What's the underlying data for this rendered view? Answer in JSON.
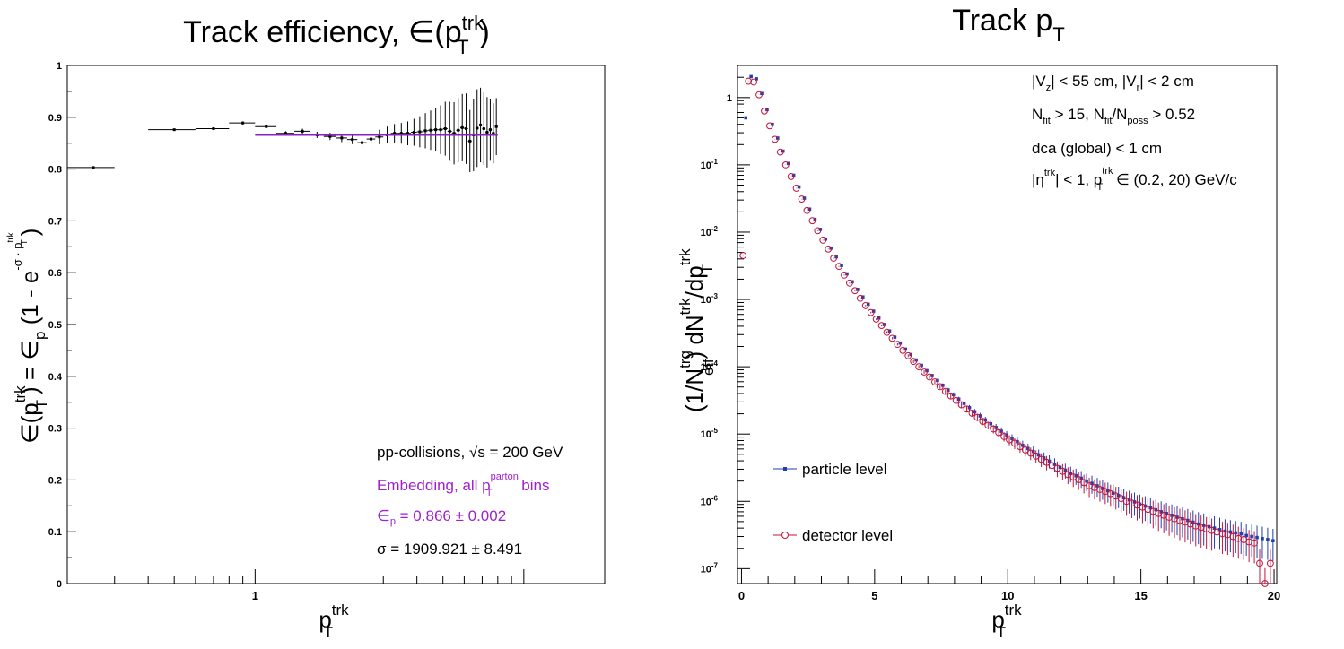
{
  "chart_data": [
    {
      "type": "scatter",
      "title": "Track efficiency, ∈(p",
      "title_sup": "trk",
      "title_sub": "T",
      "title_close": ")",
      "xlabel": "p",
      "xlabel_sup": "trk",
      "xlabel_sub": "T",
      "ylabel": "∈(p",
      "ylabel_sup": "trk",
      "ylabel_sub": "T",
      "ylabel_mid": ") = ∈",
      "ylabel_mid_sub": "p",
      "ylabel_tail": " (1 - e",
      "ylabel_exp": "-σ · p",
      "ylabel_exp_sup": "trk",
      "ylabel_exp_sub": "T",
      "ylabel_close": ")",
      "x_scale": "log",
      "xlim": [
        0.2,
        20
      ],
      "ylim": [
        0,
        1
      ],
      "x_tick_label": "1",
      "y_ticks": [
        "0",
        "0.1",
        "0.2",
        "0.3",
        "0.4",
        "0.5",
        "0.6",
        "0.7",
        "0.8",
        "0.9",
        "1"
      ],
      "series": [
        {
          "type": "errorbar",
          "color": "#000000",
          "x": [
            0.25,
            0.5,
            0.7,
            0.9,
            1.1,
            1.3,
            1.5,
            1.7,
            1.9,
            2.1,
            2.3,
            2.5,
            2.7,
            2.9,
            3.1,
            3.3,
            3.5,
            3.7,
            3.9,
            4.1,
            4.3,
            4.5,
            4.7,
            4.9,
            5.1,
            5.3,
            5.5,
            5.7,
            5.9,
            6.1,
            6.3,
            6.5,
            6.7,
            6.9,
            7.1,
            7.3,
            7.5,
            7.7,
            7.9
          ],
          "xerr": [
            0.05,
            0.1,
            0.1,
            0.1,
            0.1,
            0.1,
            0.1,
            0.1,
            0.1,
            0.1,
            0.1,
            0.1,
            0.1,
            0.1,
            0.1,
            0.1,
            0.1,
            0.1,
            0.1,
            0.1,
            0.1,
            0.1,
            0.1,
            0.1,
            0.1,
            0.1,
            0.1,
            0.1,
            0.1,
            0.1,
            0.1,
            0.1,
            0.1,
            0.1,
            0.1,
            0.1,
            0.1,
            0.1,
            0.1
          ],
          "y": [
            0.803,
            0.876,
            0.878,
            0.889,
            0.882,
            0.869,
            0.873,
            0.866,
            0.863,
            0.86,
            0.857,
            0.851,
            0.858,
            0.862,
            0.866,
            0.869,
            0.869,
            0.869,
            0.871,
            0.872,
            0.874,
            0.875,
            0.876,
            0.876,
            0.878,
            0.873,
            0.869,
            0.875,
            0.88,
            0.878,
            0.854,
            0.866,
            0.879,
            0.885,
            0.878,
            0.871,
            0.876,
            0.869,
            0.882
          ],
          "yerr": [
            0.001,
            0.002,
            0.002,
            0.003,
            0.003,
            0.004,
            0.005,
            0.006,
            0.007,
            0.008,
            0.009,
            0.01,
            0.012,
            0.014,
            0.016,
            0.018,
            0.02,
            0.023,
            0.026,
            0.03,
            0.034,
            0.038,
            0.042,
            0.047,
            0.052,
            0.057,
            0.06,
            0.062,
            0.065,
            0.068,
            0.06,
            0.07,
            0.075,
            0.072,
            0.07,
            0.068,
            0.06,
            0.058,
            0.055
          ]
        },
        {
          "type": "fit",
          "color": "#8e1ec5",
          "from_x": 1.0,
          "to_x": 8.0,
          "y": 0.866
        }
      ],
      "annotations": {
        "color": "#a020d0",
        "line1": "pp-collisions, √s = 200 GeV",
        "line2_a": "Embedding, all p",
        "line2_sup": "parton",
        "line2_sub": "T",
        "line2_b": " bins",
        "line3_a": "∈",
        "line3_sub": "p",
        "line3_b": " = 0.866 ± 0.002",
        "line4": "σ = 1909.921 ± 8.491"
      }
    },
    {
      "type": "scatter",
      "title": "Track p",
      "title_sub": "T",
      "xlabel": "p",
      "xlabel_sup": "trk",
      "xlabel_sub": "T",
      "ylabel": "(1/N",
      "ylabel_sup": "trg",
      "ylabel_sub": "eff",
      "ylabel_tail": ") dN",
      "ylabel_tail_sup": "trk",
      "ylabel_tail_b": "/dp",
      "ylabel_tail_b_sup": "trk",
      "ylabel_tail_b_sub": "T",
      "y_scale": "log",
      "xlim": [
        -0.15,
        20.1
      ],
      "ylim": [
        6e-08,
        3.0
      ],
      "x_ticks": [
        "0",
        "5",
        "10",
        "15",
        "20"
      ],
      "y_ticks": [
        {
          "v": 1,
          "label": "1"
        },
        {
          "v": 0.1,
          "label": "10",
          "exp": "-1"
        },
        {
          "v": 0.01,
          "label": "10",
          "exp": "-2"
        },
        {
          "v": 0.001,
          "label": "10",
          "exp": "-3"
        },
        {
          "v": 0.0001,
          "label": "10",
          "exp": "-4"
        },
        {
          "v": 1e-05,
          "label": "10",
          "exp": "-5"
        },
        {
          "v": 1e-06,
          "label": "10",
          "exp": "-6"
        },
        {
          "v": 1e-07,
          "label": "10",
          "exp": "-7"
        }
      ],
      "cuts": {
        "l1_a": "|V",
        "l1_sub": "z",
        "l1_b": "| < 55 cm, |V",
        "l1_sub2": "r",
        "l1_c": "| < 2 cm",
        "l2_a": "N",
        "l2_sub": "fit",
        "l2_b": " > 15, N",
        "l2_sub2": "fit",
        "l2_c": "/N",
        "l2_sub3": "poss",
        "l2_d": " > 0.52",
        "l3": "dca (global) < 1 cm",
        "l4_a": "|η",
        "l4_sup": "trk",
        "l4_b": "| < 1, p",
        "l4_sup2": "trk",
        "l4_sub": "T",
        "l4_c": " ∈ (0.2, 20) GeV/c"
      },
      "legend_position": "bottom-left",
      "series": [
        {
          "name": "particle level",
          "color": "#1f3fb3",
          "marker": "filled-square",
          "x": [
            0.1,
            0.3,
            0.5,
            0.7,
            0.9,
            1.1,
            1.3,
            1.5,
            1.7,
            1.9,
            2.1,
            2.3,
            2.5,
            2.7,
            2.9,
            3.1,
            3.3,
            3.5,
            3.7,
            3.9,
            4.1,
            4.3,
            4.5,
            4.7,
            4.9,
            5.1,
            5.3,
            5.5,
            5.7,
            5.9,
            6.1,
            6.3,
            6.5,
            6.7,
            6.9,
            7.1,
            7.3,
            7.5,
            7.7,
            7.9,
            8.1,
            8.3,
            8.5,
            8.7,
            8.9,
            9.1,
            9.3,
            9.5,
            9.7,
            9.9,
            10.1,
            10.3,
            10.5,
            10.7,
            10.9,
            11.1,
            11.3,
            11.5,
            11.7,
            11.9,
            12.1,
            12.3,
            12.5,
            12.7,
            12.9,
            13.1,
            13.3,
            13.5,
            13.7,
            13.9,
            14.1,
            14.3,
            14.5,
            14.7,
            14.9,
            15.1,
            15.3,
            15.5,
            15.7,
            15.9,
            16.1,
            16.3,
            16.5,
            16.7,
            16.9,
            17.1,
            17.3,
            17.5,
            17.7,
            17.9,
            18.1,
            18.3,
            18.5,
            18.7,
            18.9,
            19.1,
            19.3,
            19.5,
            19.7,
            19.9
          ],
          "y": [
            0.5,
            2.05,
            1.9,
            1.15,
            0.66,
            0.4,
            0.25,
            0.16,
            0.105,
            0.07,
            0.047,
            0.032,
            0.022,
            0.0155,
            0.011,
            0.0079,
            0.0058,
            0.0043,
            0.0032,
            0.0024,
            0.00183,
            0.00141,
            0.00109,
            0.00085,
            0.00067,
            0.00053,
            0.000425,
            0.00034,
            0.000275,
            0.000225,
            0.000183,
            0.000152,
            0.000126,
            0.000105,
            8.75e-05,
            7.4e-05,
            6.25e-05,
            5.3e-05,
            4.5e-05,
            3.85e-05,
            3.3e-05,
            2.85e-05,
            2.47e-05,
            2.14e-05,
            1.86e-05,
            1.62e-05,
            1.42e-05,
            1.25e-05,
            1.1e-05,
            9.7e-06,
            8.6e-06,
            7.7e-06,
            6.8e-06,
            6.1e-06,
            5.5e-06,
            4.9e-06,
            4.4e-06,
            3.95e-06,
            3.55e-06,
            3.2e-06,
            2.9e-06,
            2.6e-06,
            2.4e-06,
            2.2e-06,
            2e-06,
            1.85e-06,
            1.7e-06,
            1.55e-06,
            1.43e-06,
            1.32e-06,
            1.22e-06,
            1.13e-06,
            1.05e-06,
            9.8e-07,
            9.1e-07,
            8.5e-07,
            8e-07,
            7.5e-07,
            7e-07,
            6.6e-07,
            6.2e-07,
            5.8e-07,
            5.5e-07,
            5.2e-07,
            4.9e-07,
            4.6e-07,
            4.4e-07,
            4.2e-07,
            4e-07,
            3.8e-07,
            3.6e-07,
            3.5e-07,
            3.4e-07,
            3.3e-07,
            3.1e-07,
            3e-07,
            2.9e-07,
            2.8e-07,
            2.7e-07,
            2.6e-07
          ],
          "rel_err": [
            0.003,
            0.003,
            0.003,
            0.003,
            0.003,
            0.003,
            0.003,
            0.003,
            0.004,
            0.004,
            0.005,
            0.005,
            0.006,
            0.007,
            0.008,
            0.009,
            0.01,
            0.011,
            0.012,
            0.014,
            0.015,
            0.017,
            0.019,
            0.021,
            0.023,
            0.025,
            0.028,
            0.03,
            0.033,
            0.036,
            0.039,
            0.043,
            0.046,
            0.05,
            0.054,
            0.058,
            0.063,
            0.068,
            0.073,
            0.078,
            0.083,
            0.089,
            0.095,
            0.1,
            0.11,
            0.11,
            0.12,
            0.13,
            0.14,
            0.14,
            0.15,
            0.16,
            0.17,
            0.18,
            0.19,
            0.2,
            0.21,
            0.22,
            0.23,
            0.24,
            0.25,
            0.26,
            0.27,
            0.28,
            0.29,
            0.3,
            0.31,
            0.32,
            0.33,
            0.34,
            0.35,
            0.36,
            0.37,
            0.38,
            0.39,
            0.4,
            0.41,
            0.42,
            0.43,
            0.44,
            0.45,
            0.46,
            0.47,
            0.48,
            0.49,
            0.5,
            0.5,
            0.5,
            0.5,
            0.5,
            0.5,
            0.5,
            0.5,
            0.5,
            0.5,
            0.5,
            0.5,
            0.5,
            0.5,
            0.5
          ]
        },
        {
          "name": "detector level",
          "color": "#c0143c",
          "marker": "open-circle",
          "x": [
            0.1,
            0.3,
            0.5,
            0.7,
            0.9,
            1.1,
            1.3,
            1.5,
            1.7,
            1.9,
            2.1,
            2.3,
            2.5,
            2.7,
            2.9,
            3.1,
            3.3,
            3.5,
            3.7,
            3.9,
            4.1,
            4.3,
            4.5,
            4.7,
            4.9,
            5.1,
            5.3,
            5.5,
            5.7,
            5.9,
            6.1,
            6.3,
            6.5,
            6.7,
            6.9,
            7.1,
            7.3,
            7.5,
            7.7,
            7.9,
            8.1,
            8.3,
            8.5,
            8.7,
            8.9,
            9.1,
            9.3,
            9.5,
            9.7,
            9.9,
            10.1,
            10.3,
            10.5,
            10.7,
            10.9,
            11.1,
            11.3,
            11.5,
            11.7,
            11.9,
            12.1,
            12.3,
            12.5,
            12.7,
            12.9,
            13.1,
            13.3,
            13.5,
            13.7,
            13.9,
            14.1,
            14.3,
            14.5,
            14.7,
            14.9,
            15.1,
            15.3,
            15.5,
            15.7,
            15.9,
            16.1,
            16.3,
            16.5,
            16.7,
            16.9,
            17.1,
            17.3,
            17.5,
            17.7,
            17.9,
            18.1,
            18.3,
            18.5,
            18.7,
            18.9,
            19.1,
            19.3,
            19.5,
            19.7,
            19.9
          ],
          "y": [
            0.0045,
            1.75,
            1.7,
            1.1,
            0.63,
            0.38,
            0.24,
            0.155,
            0.1,
            0.067,
            0.045,
            0.031,
            0.021,
            0.0148,
            0.0105,
            0.0076,
            0.0056,
            0.0041,
            0.0031,
            0.0023,
            0.00175,
            0.00135,
            0.00104,
            0.00081,
            0.00064,
            0.00051,
            0.00041,
            0.000325,
            0.000265,
            0.000215,
            0.000175,
            0.000146,
            0.00012,
            0.0001,
            8.35e-05,
            7.05e-05,
            5.95e-05,
            5.05e-05,
            4.3e-05,
            3.68e-05,
            3.15e-05,
            2.72e-05,
            2.35e-05,
            2.04e-05,
            1.77e-05,
            1.54e-05,
            1.35e-05,
            1.19e-05,
            1.05e-05,
            9.2e-06,
            8.2e-06,
            7.3e-06,
            6.5e-06,
            5.8e-06,
            5.2e-06,
            4.7e-06,
            4.2e-06,
            3.8e-06,
            3.4e-06,
            3.1e-06,
            2.8e-06,
            2.5e-06,
            2.3e-06,
            2.1e-06,
            1.9e-06,
            1.7e-06,
            1.6e-06,
            1.5e-06,
            1.4e-06,
            1.3e-06,
            1.2e-06,
            1.1e-06,
            1e-06,
            9.4e-07,
            8.8e-07,
            8.2e-07,
            7.6e-07,
            7.1e-07,
            6.6e-07,
            6.2e-07,
            5.8e-07,
            5.5e-07,
            5.2e-07,
            4.9e-07,
            4.6e-07,
            4.3e-07,
            4.1e-07,
            3.9e-07,
            3.7e-07,
            3.5e-07,
            3.3e-07,
            3.2e-07,
            3e-07,
            2.8e-07,
            2.7e-07,
            2.5e-07,
            2.4e-07,
            1.2e-07,
            6e-08,
            1.2e-07
          ],
          "rel_err": [
            0.01,
            0.004,
            0.004,
            0.004,
            0.004,
            0.004,
            0.004,
            0.004,
            0.005,
            0.005,
            0.006,
            0.006,
            0.007,
            0.008,
            0.009,
            0.01,
            0.011,
            0.012,
            0.014,
            0.015,
            0.017,
            0.019,
            0.021,
            0.023,
            0.025,
            0.028,
            0.03,
            0.033,
            0.036,
            0.039,
            0.043,
            0.047,
            0.051,
            0.055,
            0.06,
            0.064,
            0.069,
            0.074,
            0.08,
            0.085,
            0.09,
            0.1,
            0.1,
            0.11,
            0.12,
            0.12,
            0.13,
            0.14,
            0.15,
            0.16,
            0.17,
            0.18,
            0.19,
            0.2,
            0.21,
            0.22,
            0.23,
            0.24,
            0.25,
            0.26,
            0.27,
            0.28,
            0.29,
            0.3,
            0.31,
            0.32,
            0.33,
            0.34,
            0.35,
            0.36,
            0.37,
            0.38,
            0.39,
            0.4,
            0.41,
            0.42,
            0.43,
            0.44,
            0.45,
            0.46,
            0.47,
            0.48,
            0.49,
            0.5,
            0.5,
            0.5,
            0.5,
            0.5,
            0.5,
            0.5,
            0.5,
            0.5,
            0.5,
            0.5,
            0.5,
            0.5,
            0.5,
            0.6,
            0.7,
            0.6
          ]
        }
      ]
    }
  ]
}
